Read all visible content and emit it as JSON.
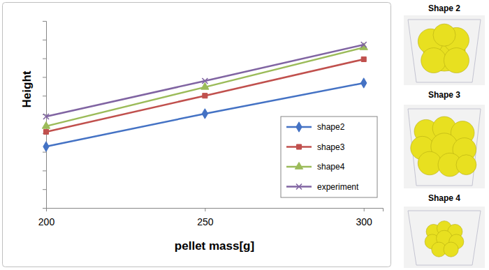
{
  "chart_data": {
    "type": "line",
    "x_label": "pellet mass[g]",
    "y_label": "Height",
    "annotations": [
      "Shape 2",
      "Shape 3",
      "Shape 4"
    ],
    "x": [
      200,
      250,
      300
    ],
    "xlim": [
      200,
      306
    ],
    "xticks": [
      200,
      250,
      300
    ],
    "ylim": [
      0,
      10
    ],
    "yticks": [
      0,
      1,
      2,
      3,
      4,
      5,
      6,
      7,
      8,
      9,
      10
    ],
    "tick_labels": "x",
    "grid": false,
    "legend": "lower right",
    "series": [
      {
        "name": "shape2",
        "color": "#4472c4",
        "marker": "diamond",
        "values": [
          3.28,
          5.04,
          6.68
        ]
      },
      {
        "name": "shape3",
        "color": "#c0504d",
        "marker": "square",
        "values": [
          4.07,
          6.0,
          7.95
        ]
      },
      {
        "name": "shape4",
        "color": "#9bbb59",
        "marker": "triangle",
        "values": [
          4.37,
          6.46,
          8.58
        ]
      },
      {
        "name": "experiment",
        "color": "#8064a2",
        "marker": "x",
        "values": [
          4.89,
          6.79,
          8.73
        ]
      }
    ]
  }
}
